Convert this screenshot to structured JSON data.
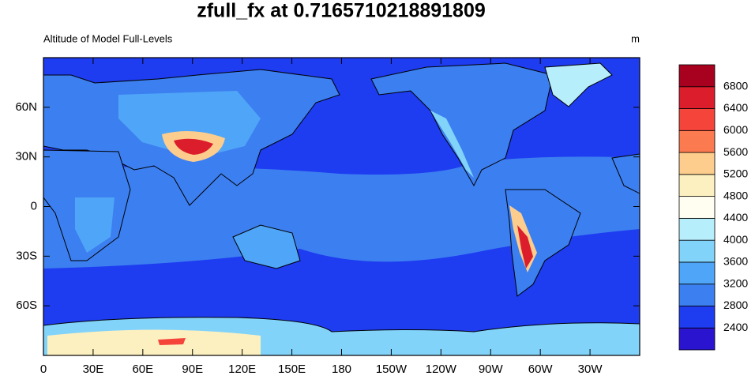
{
  "title": "zfull_fx at 0.7165710218891809",
  "left_string": "Altitude of Model Full-Levels",
  "right_string": "m",
  "lon_range": [
    0,
    360
  ],
  "lat_range": [
    -90,
    90
  ],
  "lon_ticks": [
    0,
    {
      "value": 30,
      "label": "30E"
    },
    {
      "value": 60,
      "label": "60E"
    },
    {
      "value": 90,
      "label": "90E"
    },
    {
      "value": 120,
      "label": "120E"
    },
    {
      "value": 150,
      "label": "150E"
    },
    180,
    {
      "value": 210,
      "label": "150W"
    },
    {
      "value": 240,
      "label": "120W"
    },
    {
      "value": 270,
      "label": "90W"
    },
    {
      "value": 300,
      "label": "60W"
    },
    {
      "value": 330,
      "label": "30W"
    }
  ],
  "lat_ticks": [
    {
      "value": 60,
      "label": "60N"
    },
    {
      "value": 30,
      "label": "30N"
    },
    0,
    {
      "value": -30,
      "label": "30S"
    },
    {
      "value": -60,
      "label": "60S"
    }
  ],
  "colorbar": {
    "levels": [
      2400,
      2800,
      3200,
      3600,
      4000,
      4400,
      4800,
      5200,
      5600,
      6000,
      6400,
      6800
    ],
    "colors": [
      "#2b14d0",
      "#1e3cf0",
      "#3c7ff0",
      "#4fa5f7",
      "#82d3fa",
      "#b6eefc",
      "#fffef0",
      "#fdf0c0",
      "#fdcd8e",
      "#fb7a50",
      "#f5453a",
      "#dc1e2c",
      "#a8001f"
    ]
  }
}
